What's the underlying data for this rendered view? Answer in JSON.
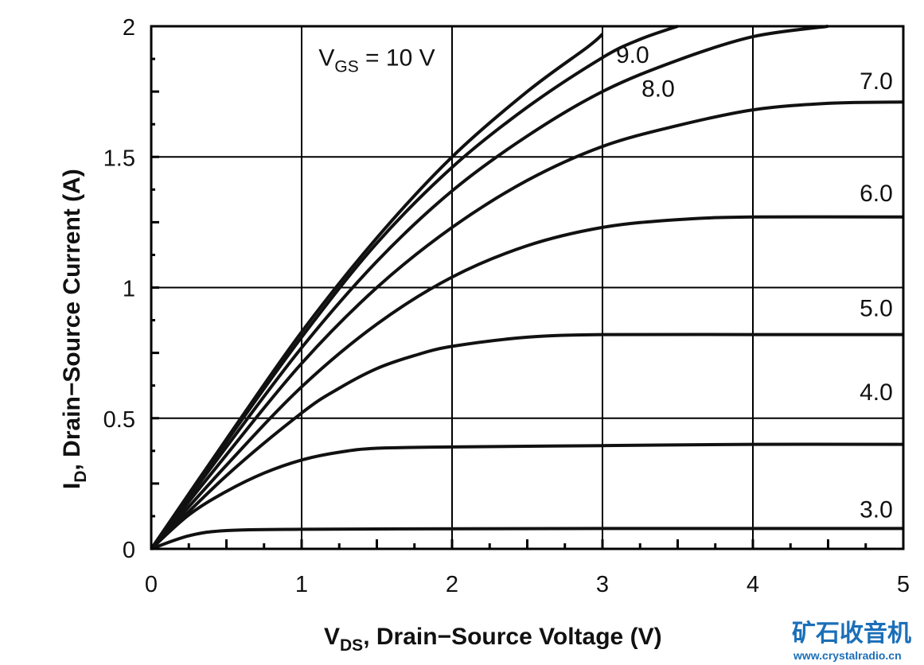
{
  "chart_data": {
    "type": "line",
    "xlabel": {
      "main": "V",
      "sub": "DS",
      "rest": ", Drain−Source Voltage (V)"
    },
    "ylabel": {
      "main": "I",
      "sub": "D",
      "rest": ", Drain−Source Current (A)"
    },
    "xlim": [
      0,
      5
    ],
    "ylim": [
      0,
      2
    ],
    "x_ticks": [
      {
        "value": 0,
        "label": "0"
      },
      {
        "value": 1,
        "label": "1"
      },
      {
        "value": 2,
        "label": "2"
      },
      {
        "value": 3,
        "label": "3"
      },
      {
        "value": 4,
        "label": "4"
      },
      {
        "value": 5,
        "label": "5"
      }
    ],
    "y_ticks": [
      {
        "value": 0,
        "label": "0"
      },
      {
        "value": 0.5,
        "label": "0.5"
      },
      {
        "value": 1,
        "label": "1"
      },
      {
        "value": 1.5,
        "label": "1.5"
      },
      {
        "value": 2,
        "label": "2"
      }
    ],
    "grid": true,
    "series": [
      {
        "name": "3.0",
        "label": "3.0",
        "label_at": [
          4.82,
          0.12
        ],
        "x": [
          0,
          0.25,
          0.5,
          1,
          2,
          3,
          4,
          5
        ],
        "y": [
          0,
          0.05,
          0.07,
          0.075,
          0.077,
          0.078,
          0.078,
          0.078
        ]
      },
      {
        "name": "4.0",
        "label": "4.0",
        "label_at": [
          4.82,
          0.57
        ],
        "x": [
          0,
          0.25,
          0.5,
          0.75,
          1,
          1.25,
          1.5,
          2,
          3,
          4,
          5
        ],
        "y": [
          0,
          0.13,
          0.22,
          0.29,
          0.34,
          0.37,
          0.385,
          0.39,
          0.395,
          0.4,
          0.4
        ]
      },
      {
        "name": "5.0",
        "label": "5.0",
        "label_at": [
          4.82,
          0.89
        ],
        "x": [
          0,
          0.5,
          1,
          1.25,
          1.5,
          1.75,
          2,
          2.5,
          3,
          4,
          5
        ],
        "y": [
          0,
          0.28,
          0.52,
          0.615,
          0.69,
          0.74,
          0.775,
          0.81,
          0.82,
          0.82,
          0.82
        ]
      },
      {
        "name": "6.0",
        "label": "6.0",
        "label_at": [
          4.82,
          1.33
        ],
        "x": [
          0,
          0.5,
          1,
          1.5,
          2,
          2.5,
          3,
          3.5,
          4,
          5
        ],
        "y": [
          0,
          0.32,
          0.62,
          0.86,
          1.04,
          1.16,
          1.23,
          1.26,
          1.27,
          1.27
        ]
      },
      {
        "name": "7.0",
        "label": "7.0",
        "label_at": [
          4.82,
          1.76
        ],
        "x": [
          0,
          0.5,
          1,
          1.5,
          2,
          2.5,
          3,
          3.5,
          4,
          4.5,
          5
        ],
        "y": [
          0,
          0.36,
          0.71,
          1.0,
          1.23,
          1.41,
          1.54,
          1.62,
          1.68,
          1.705,
          1.71
        ]
      },
      {
        "name": "8.0",
        "label": "8.0",
        "label_at": [
          3.37,
          1.73
        ],
        "x": [
          0,
          0.5,
          1,
          1.5,
          2,
          2.5,
          3,
          3.5,
          4,
          4.5
        ],
        "y": [
          0,
          0.39,
          0.77,
          1.1,
          1.37,
          1.58,
          1.75,
          1.87,
          1.96,
          2.0
        ]
      },
      {
        "name": "9.0",
        "label": "9.0",
        "label_at": [
          3.2,
          1.86
        ],
        "x": [
          0,
          0.5,
          1,
          1.5,
          2,
          2.5,
          3,
          3.25,
          3.5
        ],
        "y": [
          0,
          0.41,
          0.81,
          1.17,
          1.46,
          1.69,
          1.88,
          1.95,
          2.0
        ]
      },
      {
        "name": "10",
        "label": "10",
        "label_at": [
          1.5,
          1.85
        ],
        "x": [
          0,
          0.5,
          1,
          1.5,
          2,
          2.5,
          2.9,
          3.0
        ],
        "y": [
          0,
          0.42,
          0.83,
          1.19,
          1.5,
          1.75,
          1.92,
          1.97
        ]
      }
    ],
    "annotation": {
      "main": "V",
      "sub": "GS",
      "rest": " = 10 V",
      "at": [
        1.5,
        1.85
      ]
    }
  },
  "watermark": {
    "text": "矿石收音机",
    "url": "www.crystalradio.cn",
    "color": "#1b6fb8"
  }
}
